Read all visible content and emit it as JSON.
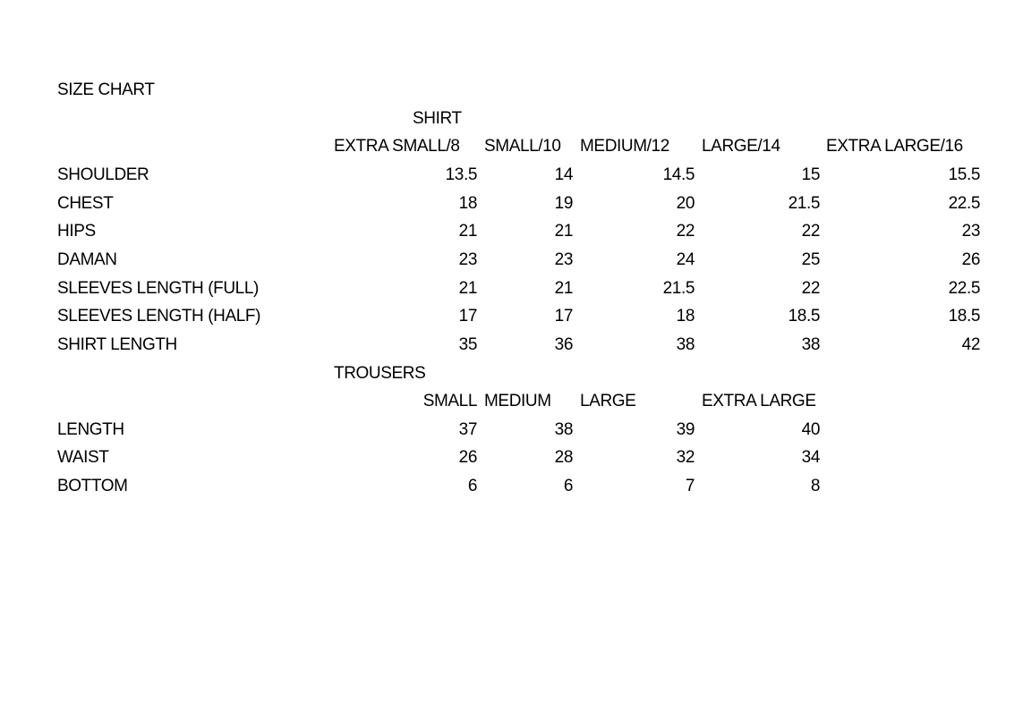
{
  "title": "SIZE CHART",
  "shirt": {
    "label": "SHIRT",
    "sizes": [
      "EXTRA SMALL/8",
      "SMALL/10",
      "MEDIUM/12",
      "LARGE/14",
      "EXTRA LARGE/16"
    ],
    "rows": [
      {
        "label": "SHOULDER",
        "values": [
          "13.5",
          "14",
          "14.5",
          "15",
          "15.5"
        ]
      },
      {
        "label": "CHEST",
        "values": [
          "18",
          "19",
          "20",
          "21.5",
          "22.5"
        ]
      },
      {
        "label": "HIPS",
        "values": [
          "21",
          "21",
          "22",
          "22",
          "23"
        ]
      },
      {
        "label": "DAMAN",
        "values": [
          "23",
          "23",
          "24",
          "25",
          "26"
        ]
      },
      {
        "label": "SLEEVES LENGTH (FULL)",
        "values": [
          "21",
          "21",
          "21.5",
          "22",
          "22.5"
        ]
      },
      {
        "label": "SLEEVES LENGTH (HALF)",
        "values": [
          "17",
          "17",
          "18",
          "18.5",
          "18.5"
        ]
      },
      {
        "label": "SHIRT LENGTH",
        "values": [
          "35",
          "36",
          "38",
          "38",
          "42"
        ]
      }
    ]
  },
  "trousers": {
    "label": "TROUSERS",
    "sizes": [
      "SMALL",
      "MEDIUM",
      "LARGE",
      "EXTRA LARGE"
    ],
    "rows": [
      {
        "label": "LENGTH",
        "values": [
          "37",
          "38",
          "39",
          "40"
        ]
      },
      {
        "label": "WAIST",
        "values": [
          "26",
          "28",
          "32",
          "34"
        ]
      },
      {
        "label": "BOTTOM",
        "values": [
          "6",
          "6",
          "7",
          "8"
        ]
      }
    ]
  }
}
